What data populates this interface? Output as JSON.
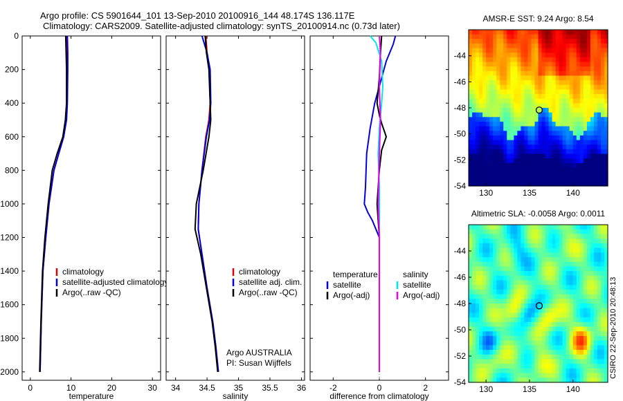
{
  "header": {
    "line1": "Argo profile: CS 5901644_101 13-Sep-2010 20100916_144 48.174S 136.117E",
    "line2": "Climatology: CARS2009. Satellite-adjusted climatology: synTS_20100914.nc (0.73d later)"
  },
  "credit": "CSIRO 22-Sep-2010 20:48:13",
  "colors": {
    "climatology": "#dd0000",
    "satellite": "#0000dd",
    "argo": "#000000",
    "sal_satellite": "#00e5ee",
    "sal_argo": "#ee00ee"
  },
  "chart_data": [
    {
      "id": "temperature",
      "type": "line",
      "xlabel": "temperature",
      "ylabel": "",
      "xlim": [
        -2,
        32
      ],
      "ylim": [
        2050,
        0
      ],
      "xticks": [
        "0",
        "10",
        "20",
        "30"
      ],
      "xtick_values": [
        0,
        10,
        20,
        30
      ],
      "yticks": [
        "0",
        "200",
        "400",
        "600",
        "800",
        "1000",
        "1200",
        "1400",
        "1600",
        "1800",
        "2000"
      ],
      "ytick_values": [
        0,
        200,
        400,
        600,
        800,
        1000,
        1200,
        1400,
        1600,
        1800,
        2000
      ],
      "legend": [
        "climatology",
        "satellite-adjusted climatology",
        "Argo(..raw -QC)"
      ],
      "series": [
        {
          "name": "climatology",
          "color": "#dd0000",
          "x": [
            9.0,
            9.1,
            9.1,
            9.0,
            8.8,
            8.2,
            7.0,
            5.8,
            4.6,
            3.8,
            3.1,
            2.7,
            2.4
          ],
          "y": [
            0,
            100,
            200,
            400,
            500,
            600,
            700,
            800,
            1000,
            1200,
            1400,
            1700,
            2000
          ]
        },
        {
          "name": "satellite-adjusted climatology",
          "color": "#0000dd",
          "x": [
            9.1,
            9.2,
            9.2,
            9.1,
            8.9,
            8.2,
            7.0,
            5.8,
            4.6,
            3.8,
            3.1,
            2.7,
            2.4
          ],
          "y": [
            0,
            100,
            200,
            400,
            500,
            600,
            700,
            800,
            1000,
            1200,
            1400,
            1700,
            2000
          ]
        },
        {
          "name": "Argo(..raw -QC)",
          "color": "#000000",
          "x": [
            8.7,
            8.8,
            8.9,
            8.9,
            8.6,
            8.0,
            6.6,
            5.4,
            4.4,
            3.6,
            3.0,
            2.6,
            2.3
          ],
          "y": [
            0,
            100,
            200,
            400,
            500,
            600,
            700,
            800,
            1000,
            1200,
            1400,
            1700,
            2000
          ]
        }
      ]
    },
    {
      "id": "salinity",
      "type": "line",
      "xlabel": "salinity",
      "ylabel": "",
      "xlim": [
        33.85,
        36.05
      ],
      "ylim": [
        2050,
        0
      ],
      "xticks": [
        "34",
        "34.5",
        "35",
        "35.5",
        "36"
      ],
      "xtick_values": [
        34,
        34.5,
        35,
        35.5,
        36
      ],
      "yticks": [],
      "legend": [
        "climatology",
        "satellite adj. clim.",
        "Argo(..raw -QC)"
      ],
      "annotation": [
        "Argo AUSTRALIA",
        "PI: Susan Wijffels"
      ],
      "series": [
        {
          "name": "climatology",
          "color": "#dd0000",
          "x": [
            34.48,
            34.5,
            34.54,
            34.55,
            34.53,
            34.48,
            34.42,
            34.37,
            34.36,
            34.42,
            34.5,
            34.59,
            34.64,
            34.68
          ],
          "y": [
            0,
            100,
            200,
            400,
            500,
            600,
            800,
            1000,
            1150,
            1300,
            1500,
            1700,
            1850,
            2000
          ]
        },
        {
          "name": "satellite adj. clim.",
          "color": "#0000dd",
          "x": [
            34.42,
            34.5,
            34.55,
            34.56,
            34.54,
            34.49,
            34.42,
            34.37,
            34.36,
            34.42,
            34.5,
            34.59,
            34.64,
            34.68
          ],
          "y": [
            0,
            100,
            200,
            400,
            500,
            600,
            800,
            1000,
            1150,
            1300,
            1500,
            1700,
            1850,
            2000
          ]
        },
        {
          "name": "Argo(..raw -QC)",
          "color": "#000000",
          "x": [
            34.47,
            34.49,
            34.53,
            34.55,
            34.56,
            34.53,
            34.44,
            34.33,
            34.31,
            34.4,
            34.49,
            34.58,
            34.63,
            34.67
          ],
          "y": [
            0,
            100,
            200,
            400,
            500,
            600,
            800,
            1000,
            1150,
            1300,
            1500,
            1700,
            1850,
            2000
          ]
        }
      ]
    },
    {
      "id": "difference",
      "type": "line",
      "xlabel": "difference from climatology",
      "ylabel": "",
      "xlim": [
        -3,
        3
      ],
      "ylim": [
        2050,
        0
      ],
      "xticks": [
        "-2",
        "0",
        "2"
      ],
      "xtick_values": [
        -2,
        0,
        2
      ],
      "yticks": [],
      "legend_headers": [
        "temperature",
        "salinity"
      ],
      "legend": [
        "satellite",
        "Argo(-adj)",
        "satellite",
        "Argo(-adj)"
      ],
      "series": [
        {
          "name": "temperature satellite",
          "color": "#0000dd",
          "x": [
            0.7,
            0.6,
            0.3,
            0.0,
            -0.2,
            -0.4,
            -0.55,
            -0.6,
            -0.65,
            -0.5,
            -0.3,
            0.0,
            0.0
          ],
          "y": [
            0,
            50,
            150,
            300,
            400,
            550,
            700,
            900,
            1000,
            1050,
            1100,
            1200,
            2000
          ]
        },
        {
          "name": "temperature Argo(-adj)",
          "color": "#000000",
          "x": [
            0.1,
            0.05,
            0.0,
            -0.1,
            0.0,
            0.1,
            0.3,
            0.1,
            0.0,
            -0.1,
            0.0,
            0.0
          ],
          "y": [
            0,
            100,
            250,
            400,
            470,
            520,
            600,
            680,
            800,
            1000,
            1200,
            2000
          ]
        },
        {
          "name": "salinity satellite",
          "color": "#00e5ee",
          "x": [
            -0.4,
            -0.15,
            0.1,
            0.15,
            0.1,
            0.0,
            -0.05,
            0.0,
            0.0,
            0.0
          ],
          "y": [
            0,
            40,
            150,
            300,
            400,
            550,
            700,
            900,
            1100,
            2000
          ]
        },
        {
          "name": "salinity Argo(-adj)",
          "color": "#ee00ee",
          "x": [
            0.0,
            0.05,
            0.0,
            0.05,
            0.0,
            -0.05,
            0.0,
            0.0
          ],
          "y": [
            0,
            100,
            300,
            500,
            700,
            1000,
            1200,
            2000
          ]
        }
      ]
    },
    {
      "id": "sst_map",
      "type": "heatmap",
      "title": "AMSR-E SST: 9.24 Argo: 8.54",
      "xlim": [
        128,
        144
      ],
      "ylim": [
        -54,
        -42
      ],
      "xticks": [
        "130",
        "135",
        "140"
      ],
      "xtick_values": [
        130,
        135,
        140
      ],
      "yticks": [
        "-44",
        "-46",
        "-48",
        "-50",
        "-52",
        "-54"
      ],
      "ytick_values": [
        -44,
        -46,
        -48,
        -50,
        -52,
        -54
      ],
      "marker": {
        "lon": 136.117,
        "lat": -48.174
      }
    },
    {
      "id": "sla_map",
      "type": "heatmap",
      "title": "Altimetric SLA: -0.0058 Argo: 0.0011",
      "xlim": [
        128,
        144
      ],
      "ylim": [
        -54,
        -42
      ],
      "xticks": [
        "130",
        "135",
        "140"
      ],
      "xtick_values": [
        130,
        135,
        140
      ],
      "yticks": [
        "-44",
        "-46",
        "-48",
        "-50",
        "-52",
        "-54"
      ],
      "ytick_values": [
        -44,
        -46,
        -48,
        -50,
        -52,
        -54
      ],
      "marker": {
        "lon": 136.117,
        "lat": -48.174
      }
    }
  ]
}
